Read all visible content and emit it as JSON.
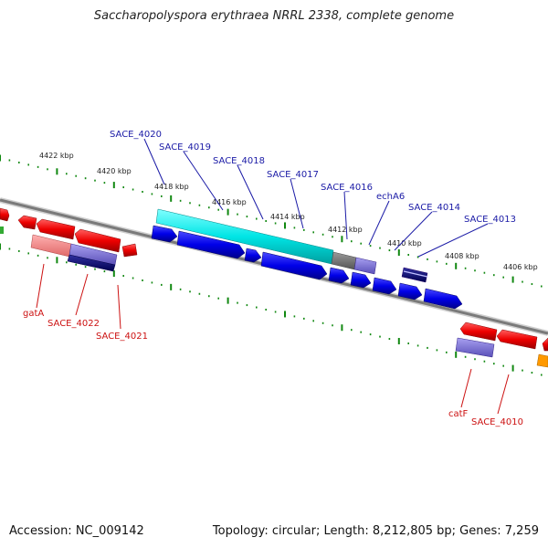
{
  "title": "Saccharopolyspora erythraea NRRL 2338, complete genome",
  "footer": {
    "accession": "Accession: NC_009142",
    "summary": "Topology: circular; Length: 8,212,805 bp; Genes: 7,259"
  },
  "scale": {
    "ticks": [
      "4422 kbp",
      "4420 kbp",
      "4418 kbp",
      "4416 kbp",
      "4414 kbp",
      "4412 kbp",
      "4410 kbp",
      "4408 kbp",
      "4406 kbp"
    ]
  },
  "genes_top": [
    "SACE_4020",
    "SACE_4019",
    "SACE_4018",
    "SACE_4017",
    "SACE_4016",
    "echA6",
    "SACE_4014",
    "SACE_4013"
  ],
  "genes_bottom_left": [
    "gatA",
    "SACE_4022",
    "SACE_4021"
  ],
  "genes_bottom_right": [
    "catF",
    "SACE_4010"
  ],
  "colors": {
    "forward_strand": "#0000ee",
    "reverse_strand": "#ee1111",
    "highlight": "#00e6e6",
    "label_blue": "#1a1aa6",
    "label_red": "#cc1111",
    "backbone": "#888888",
    "tick_green": "#118811"
  }
}
